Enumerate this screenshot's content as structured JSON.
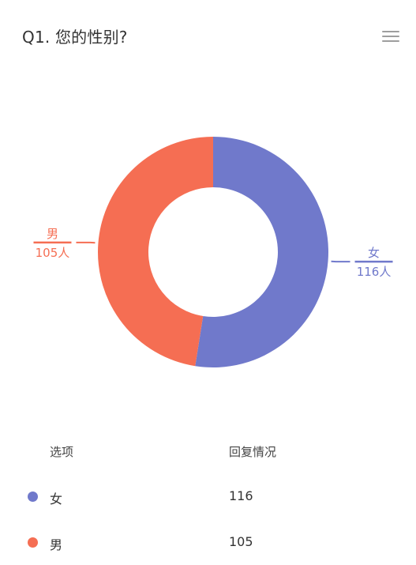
{
  "question": {
    "title": "Q1. 您的性别?"
  },
  "chart_data": {
    "type": "pie",
    "donut": true,
    "categories": [
      "女",
      "男"
    ],
    "values": [
      116,
      105
    ],
    "value_labels": [
      "116人",
      "105人"
    ],
    "colors": [
      "#7079cb",
      "#f56e53"
    ]
  },
  "table": {
    "header_option": "选项",
    "header_response": "回复情况",
    "rows": [
      {
        "label": "女",
        "value": "116",
        "color": "#7079cb"
      },
      {
        "label": "男",
        "value": "105",
        "color": "#f56e53"
      }
    ]
  },
  "icons": {
    "menu": "hamburger-menu-icon"
  }
}
